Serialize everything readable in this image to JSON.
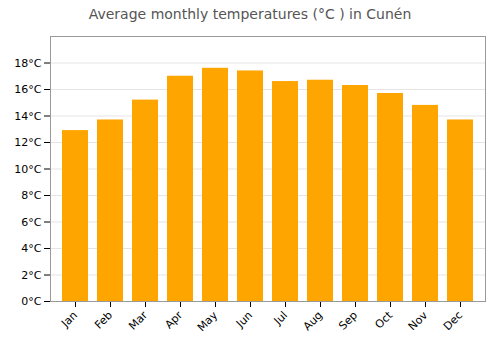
{
  "chart_data": {
    "type": "bar",
    "title": "Average monthly temperatures (°C ) in Cunén",
    "categories": [
      "Jan",
      "Feb",
      "Mar",
      "Apr",
      "May",
      "Jun",
      "Jul",
      "Aug",
      "Sep",
      "Oct",
      "Nov",
      "Dec"
    ],
    "values": [
      12.9,
      13.7,
      15.2,
      17.0,
      17.6,
      17.4,
      16.6,
      16.7,
      16.3,
      15.7,
      14.8,
      13.7
    ],
    "color": "#FFA500",
    "ylim": [
      0,
      20
    ],
    "yticks": [
      {
        "value": 0,
        "label": "0°C"
      },
      {
        "value": 2,
        "label": "2°C"
      },
      {
        "value": 4,
        "label": "4°C"
      },
      {
        "value": 6,
        "label": "6°C"
      },
      {
        "value": 8,
        "label": "8°C"
      },
      {
        "value": 10,
        "label": "10°C"
      },
      {
        "value": 12,
        "label": "12°C"
      },
      {
        "value": 14,
        "label": "14°C"
      },
      {
        "value": 16,
        "label": "16°C"
      },
      {
        "value": 18,
        "label": "18°C"
      }
    ],
    "grid": true
  }
}
